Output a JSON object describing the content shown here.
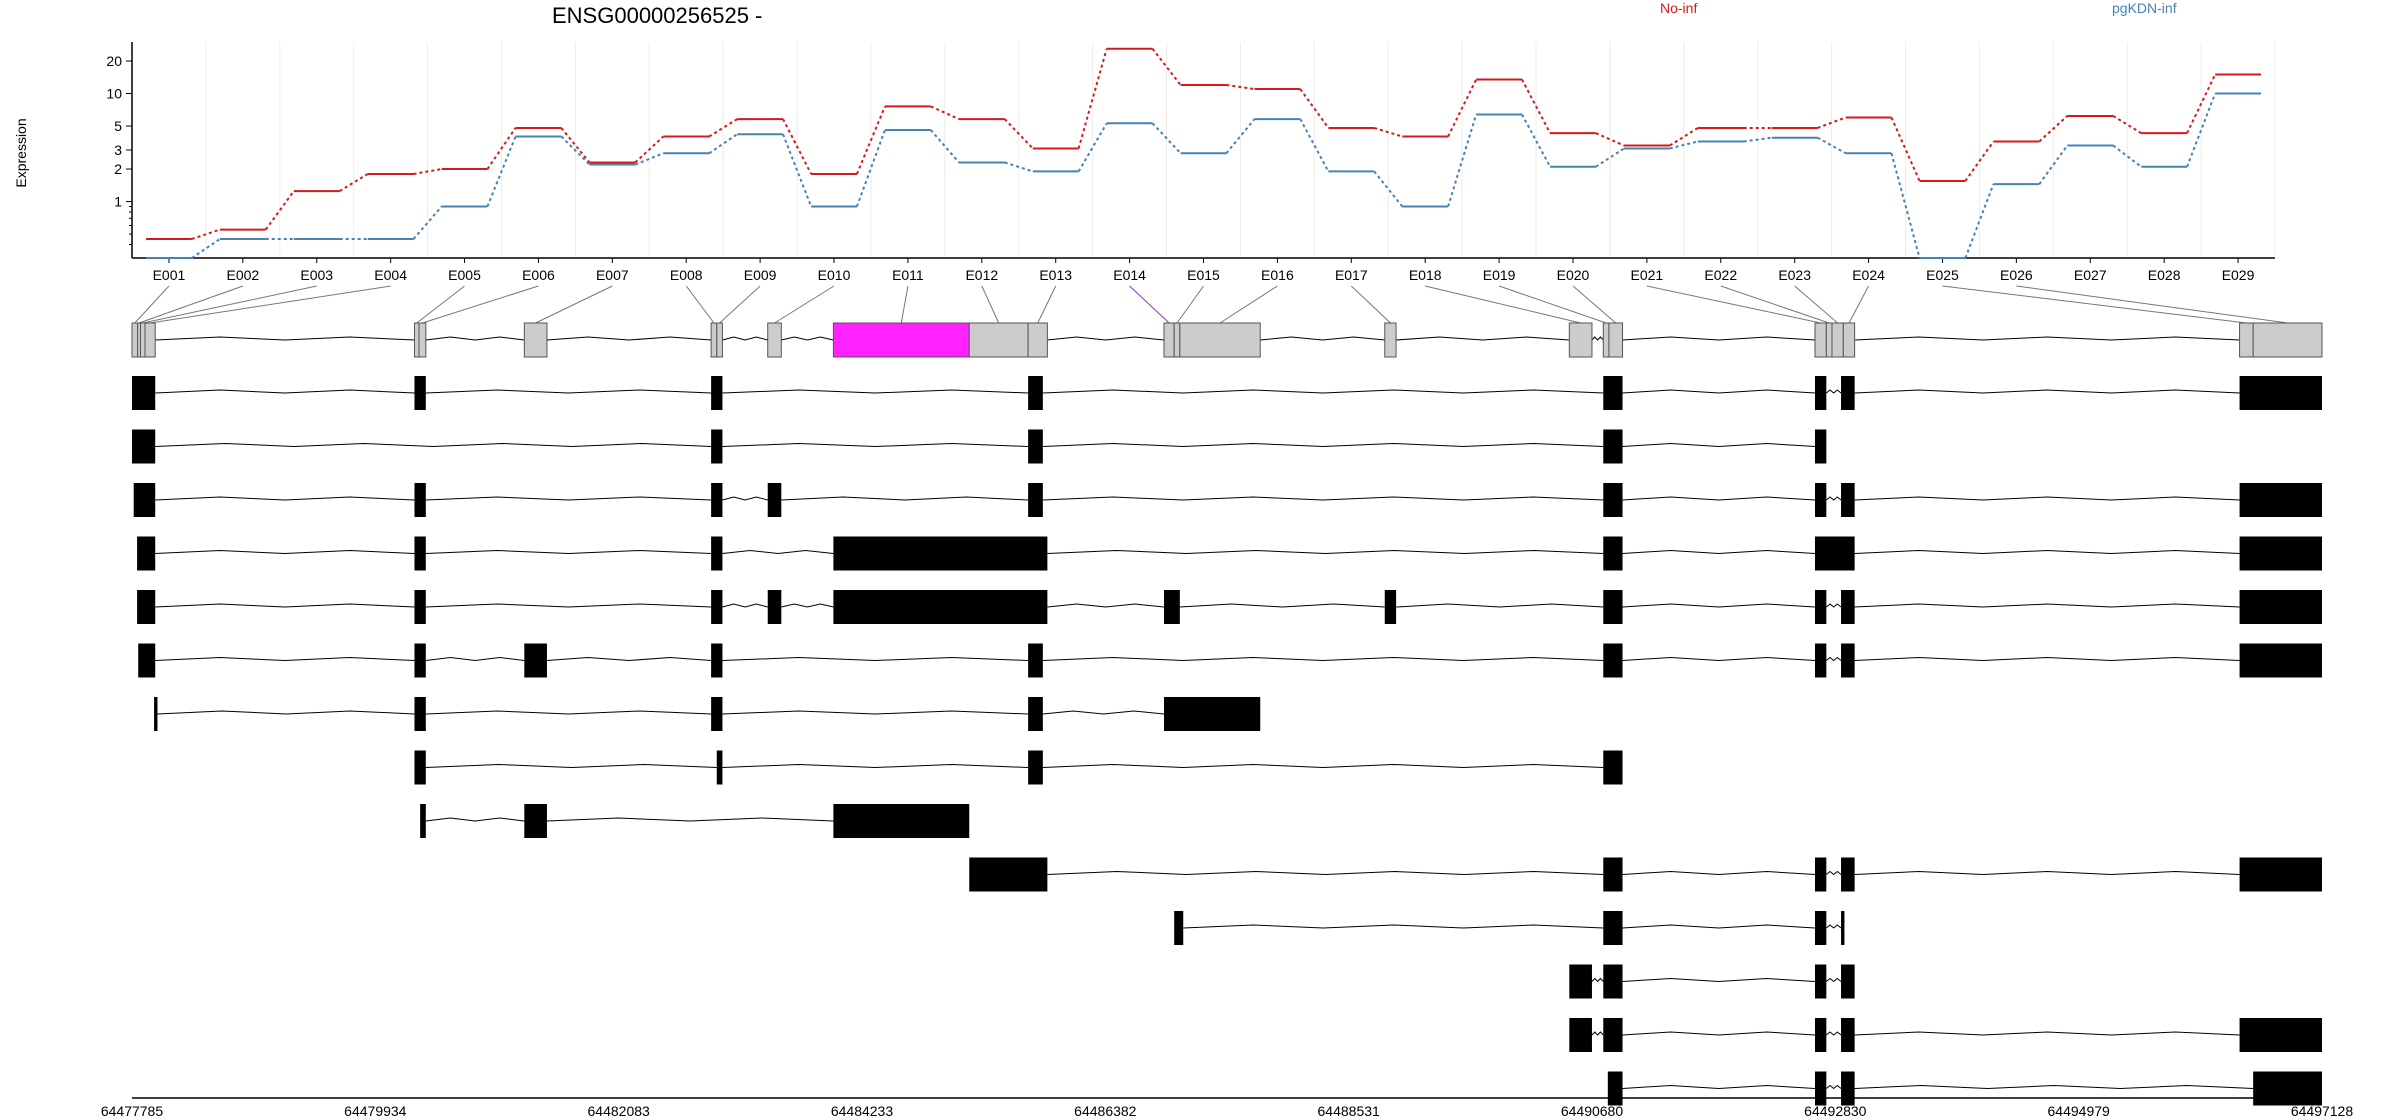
{
  "chart_data": {
    "type": "line",
    "title": "ENSG00000256525 -",
    "ylabel": "Expression",
    "y_scale": "log",
    "y_ticks": [
      1,
      2,
      3,
      5,
      10,
      20
    ],
    "grid": true,
    "legend_placement": "top-right",
    "categories": [
      "E001",
      "E002",
      "E003",
      "E004",
      "E005",
      "E006",
      "E007",
      "E008",
      "E009",
      "E010",
      "E011",
      "E012",
      "E013",
      "E014",
      "E015",
      "E016",
      "E017",
      "E018",
      "E019",
      "E020",
      "E021",
      "E022",
      "E023",
      "E024",
      "E025",
      "E026",
      "E027",
      "E028",
      "E029"
    ],
    "series": [
      {
        "name": "No-inf",
        "color": "#d7191c",
        "values": [
          0.45,
          0.55,
          1.25,
          1.8,
          2.0,
          4.8,
          2.3,
          4.0,
          5.8,
          1.8,
          7.6,
          5.8,
          3.1,
          26.0,
          12.0,
          11.0,
          4.8,
          4.0,
          13.5,
          4.3,
          3.3,
          4.8,
          4.8,
          6.0,
          1.55,
          3.6,
          6.2,
          4.3,
          15.0
        ]
      },
      {
        "name": "pgKDN-inf",
        "color": "#4682b4",
        "values": [
          0.3,
          0.45,
          0.45,
          0.45,
          0.9,
          4.0,
          2.2,
          2.8,
          4.2,
          0.9,
          4.6,
          2.3,
          1.9,
          5.3,
          2.8,
          5.8,
          1.9,
          0.9,
          6.4,
          2.1,
          3.1,
          3.6,
          3.9,
          2.8,
          0.3,
          1.45,
          3.3,
          2.1,
          10.0
        ]
      }
    ],
    "genomic_axis": {
      "min": 64477785,
      "max": 64497128,
      "tick_labels": [
        "64477785",
        "64479934",
        "64482083",
        "64484233",
        "64486382",
        "64488531",
        "64490680",
        "64492830",
        "64494979",
        "64497128"
      ]
    },
    "exon_highlight_color": "#ff22ff",
    "exon_fill_color": "#cccccc",
    "exons": [
      [
        64477785,
        64477835
      ],
      [
        64477835,
        64477860
      ],
      [
        64477860,
        64477900
      ],
      [
        64477900,
        64477990
      ],
      [
        64480280,
        64480320
      ],
      [
        64480320,
        64480380
      ],
      [
        64481250,
        64481450
      ],
      [
        64482900,
        64482950
      ],
      [
        64482950,
        64483000
      ],
      [
        64483400,
        64483520
      ],
      [
        64483980,
        64485180
      ],
      [
        64485180,
        64485700
      ],
      [
        64485700,
        64485870
      ],
      [
        64486900,
        64486990
      ],
      [
        64486990,
        64487040
      ],
      [
        64487040,
        64487750
      ],
      [
        64488850,
        64488950
      ],
      [
        64490480,
        64490680
      ],
      [
        64490780,
        64490830
      ],
      [
        64490830,
        64490950
      ],
      [
        64492650,
        64492750
      ],
      [
        64492750,
        64492800
      ],
      [
        64492800,
        64492900
      ],
      [
        64492900,
        64493000
      ],
      [
        64496400,
        64496520
      ],
      [
        64496520,
        64497128
      ]
    ],
    "transcripts": [
      [
        [
          64477785,
          64477990
        ],
        [
          64480280,
          64480380
        ],
        [
          64482900,
          64483000
        ],
        [
          64485700,
          64485830
        ],
        [
          64490780,
          64490950
        ],
        [
          64492650,
          64492750
        ],
        [
          64492880,
          64493000
        ],
        [
          64496400,
          64497128
        ]
      ],
      [
        [
          64477785,
          64477990
        ],
        [
          64482900,
          64483000
        ],
        [
          64485700,
          64485830
        ],
        [
          64490780,
          64490950
        ],
        [
          64492650,
          64492750
        ]
      ],
      [
        [
          64477800,
          64477990
        ],
        [
          64480280,
          64480380
        ],
        [
          64482900,
          64483000
        ],
        [
          64483400,
          64483520
        ],
        [
          64485700,
          64485830
        ],
        [
          64490780,
          64490950
        ],
        [
          64492650,
          64492750
        ],
        [
          64492880,
          64493000
        ],
        [
          64496400,
          64497128
        ]
      ],
      [
        [
          64477830,
          64477990
        ],
        [
          64480280,
          64480380
        ],
        [
          64482900,
          64483000
        ],
        [
          64483980,
          64485870
        ],
        [
          64490780,
          64490950
        ],
        [
          64492650,
          64493000
        ],
        [
          64496400,
          64497128
        ]
      ],
      [
        [
          64477830,
          64477990
        ],
        [
          64480280,
          64480380
        ],
        [
          64482900,
          64483000
        ],
        [
          64483400,
          64483520
        ],
        [
          64483980,
          64485870
        ],
        [
          64486900,
          64487040
        ],
        [
          64488850,
          64488950
        ],
        [
          64490780,
          64490950
        ],
        [
          64492650,
          64492750
        ],
        [
          64492880,
          64493000
        ],
        [
          64496400,
          64497128
        ]
      ],
      [
        [
          64477840,
          64477990
        ],
        [
          64480280,
          64480380
        ],
        [
          64481250,
          64481450
        ],
        [
          64482900,
          64483000
        ],
        [
          64485700,
          64485830
        ],
        [
          64490780,
          64490950
        ],
        [
          64492650,
          64492750
        ],
        [
          64492880,
          64493000
        ],
        [
          64496400,
          64497128
        ]
      ],
      [
        [
          64477980,
          64478010
        ],
        [
          64480280,
          64480380
        ],
        [
          64482900,
          64483000
        ],
        [
          64485700,
          64485830
        ],
        [
          64486900,
          64487750
        ]
      ],
      [
        [
          64480280,
          64480380
        ],
        [
          64482950,
          64483000
        ],
        [
          64485700,
          64485830
        ],
        [
          64490780,
          64490950
        ]
      ],
      [
        [
          64480330,
          64480380
        ],
        [
          64481250,
          64481450
        ],
        [
          64483980,
          64485180
        ]
      ],
      [
        [
          64485180,
          64485870
        ],
        [
          64490780,
          64490950
        ],
        [
          64492650,
          64492750
        ],
        [
          64492880,
          64493000
        ],
        [
          64496400,
          64497128
        ]
      ],
      [
        [
          64486990,
          64487070
        ],
        [
          64490780,
          64490950
        ],
        [
          64492650,
          64492750
        ],
        [
          64492880,
          64492910
        ]
      ],
      [
        [
          64490480,
          64490680
        ],
        [
          64490780,
          64490950
        ],
        [
          64492650,
          64492750
        ],
        [
          64492880,
          64493000
        ]
      ],
      [
        [
          64490480,
          64490680
        ],
        [
          64490780,
          64490950
        ],
        [
          64492650,
          64492750
        ],
        [
          64492880,
          64493000
        ],
        [
          64496400,
          64497128
        ]
      ],
      [
        [
          64490820,
          64490950
        ],
        [
          64492650,
          64492750
        ],
        [
          64492880,
          64493000
        ],
        [
          64496520,
          64497128
        ]
      ]
    ]
  }
}
